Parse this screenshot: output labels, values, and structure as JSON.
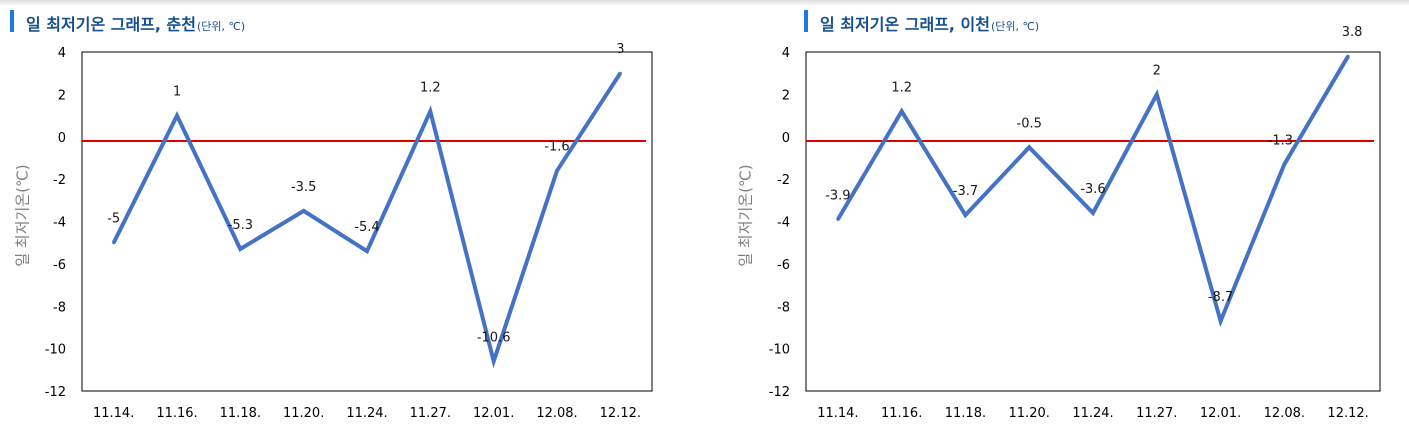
{
  "chart_data": [
    {
      "type": "line",
      "title": "일 최저기온 그래프, 춘천",
      "unit": "(단위, ℃)",
      "ylabel": "일 최저기온(℃)",
      "categories": [
        "11.14.",
        "11.16.",
        "11.18.",
        "11.20.",
        "11.24.",
        "11.27.",
        "12.01.",
        "12.08.",
        "12.12."
      ],
      "series": [
        {
          "values": [
            -5,
            1,
            -5.3,
            -3.5,
            -5.4,
            1.2,
            -10.6,
            -1.6,
            3
          ]
        }
      ],
      "data_labels": [
        "-5",
        "1",
        "-5.3",
        "-3.5",
        "-5.4",
        "1.2",
        "-10.6",
        "-1.6",
        "3"
      ],
      "ylim": [
        -12,
        4
      ],
      "yticks": [
        "4",
        "2",
        "0",
        "-2",
        "-4",
        "-6",
        "-8",
        "-10",
        "-12"
      ],
      "reference_line": -0.2,
      "grid": false,
      "line_color": "#4472c4",
      "reference_color": "#e00000"
    },
    {
      "type": "line",
      "title": "일 최저기온 그래프, 이천",
      "unit": "(단위, ℃)",
      "ylabel": "일 최저기온(℃)",
      "categories": [
        "11.14.",
        "11.16.",
        "11.18.",
        "11.20.",
        "11.24.",
        "11.27.",
        "12.01.",
        "12.08.",
        "12.12."
      ],
      "series": [
        {
          "values": [
            -3.9,
            1.2,
            -3.7,
            -0.5,
            -3.6,
            2,
            -8.7,
            -1.3,
            3.8
          ]
        }
      ],
      "data_labels": [
        "-3.9",
        "1.2",
        "-3.7",
        "-0.5",
        "-3.6",
        "2",
        "-8.7",
        "-1.3",
        "3.8"
      ],
      "ylim": [
        -12,
        4
      ],
      "yticks": [
        "4",
        "2",
        "0",
        "-2",
        "-4",
        "-6",
        "-8",
        "-10",
        "-12"
      ],
      "reference_line": -0.2,
      "grid": false,
      "line_color": "#4472c4",
      "reference_color": "#e00000"
    }
  ]
}
